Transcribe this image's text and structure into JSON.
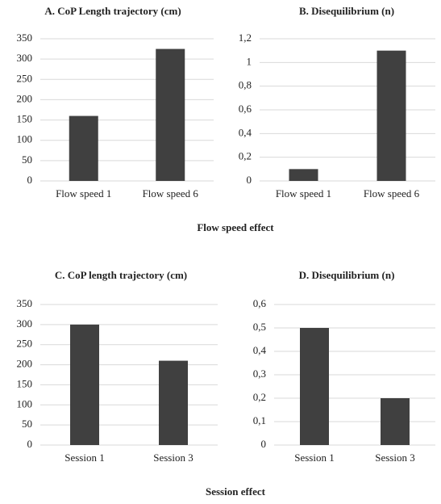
{
  "chart_data": [
    {
      "type": "bar",
      "title": "A. CoP Length trajectory (cm)",
      "categories": [
        "Flow speed 1",
        "Flow speed 6"
      ],
      "values": [
        160,
        325
      ],
      "color": "#404040",
      "ylim": [
        0,
        350
      ],
      "yticks": [
        0,
        50,
        100,
        150,
        200,
        250,
        300,
        350
      ],
      "grid": true
    },
    {
      "type": "bar",
      "title": "B. Disequilibrium (n)",
      "categories": [
        "Flow speed 1",
        "Flow speed 6"
      ],
      "values": [
        0.1,
        1.1
      ],
      "color": "#404040",
      "ylim": [
        0,
        1.2
      ],
      "yticks": [
        0,
        {
          "value": 0.2,
          "label": "0,2"
        },
        {
          "value": 0.4,
          "label": "0,4"
        },
        {
          "value": 0.6,
          "label": "0,6"
        },
        {
          "value": 0.8,
          "label": "0,8"
        },
        1,
        {
          "value": 1.2,
          "label": "1,2"
        }
      ],
      "grid": true
    },
    {
      "type": "bar",
      "title": "C. CoP length trajectory (cm)",
      "categories": [
        "Session 1",
        "Session 3"
      ],
      "values": [
        300,
        210
      ],
      "color": "#404040",
      "ylim": [
        0,
        350
      ],
      "yticks": [
        0,
        50,
        100,
        150,
        200,
        250,
        300,
        350
      ],
      "grid": true
    },
    {
      "type": "bar",
      "title": "D. Disequilibrium (n)",
      "categories": [
        "Session 1",
        "Session 3"
      ],
      "values": [
        0.5,
        0.2
      ],
      "color": "#404040",
      "ylim": [
        0,
        0.6
      ],
      "yticks": [
        0,
        {
          "value": 0.1,
          "label": "0,1"
        },
        {
          "value": 0.2,
          "label": "0,2"
        },
        {
          "value": 0.3,
          "label": "0,3"
        },
        {
          "value": 0.4,
          "label": "0,4"
        },
        {
          "value": 0.5,
          "label": "0,5"
        },
        {
          "value": 0.6,
          "label": "0,6"
        }
      ],
      "grid": true
    }
  ],
  "section_titles": [
    "Flow speed effect",
    "Session effect"
  ]
}
